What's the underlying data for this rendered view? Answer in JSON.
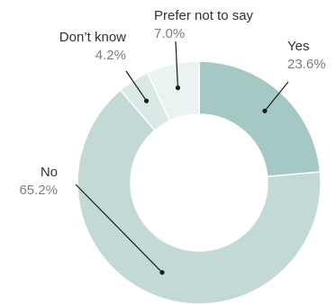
{
  "chart_data": {
    "type": "pie",
    "variant": "donut",
    "title": "",
    "start_angle_deg": 0,
    "direction": "clockwise",
    "slices": [
      {
        "label": "Yes",
        "value": 23.6,
        "value_label": "23.6%",
        "color": "#a6c8c4"
      },
      {
        "label": "No",
        "value": 65.2,
        "value_label": "65.2%",
        "color": "#c2d9d6"
      },
      {
        "label": "Don’t know",
        "value": 4.2,
        "value_label": "4.2%",
        "color": "#dae8e6"
      },
      {
        "label": "Prefer not to say",
        "value": 7.0,
        "value_label": "7.0%",
        "color": "#ebf3f2"
      }
    ],
    "legend": "none",
    "label_style": "callout"
  }
}
